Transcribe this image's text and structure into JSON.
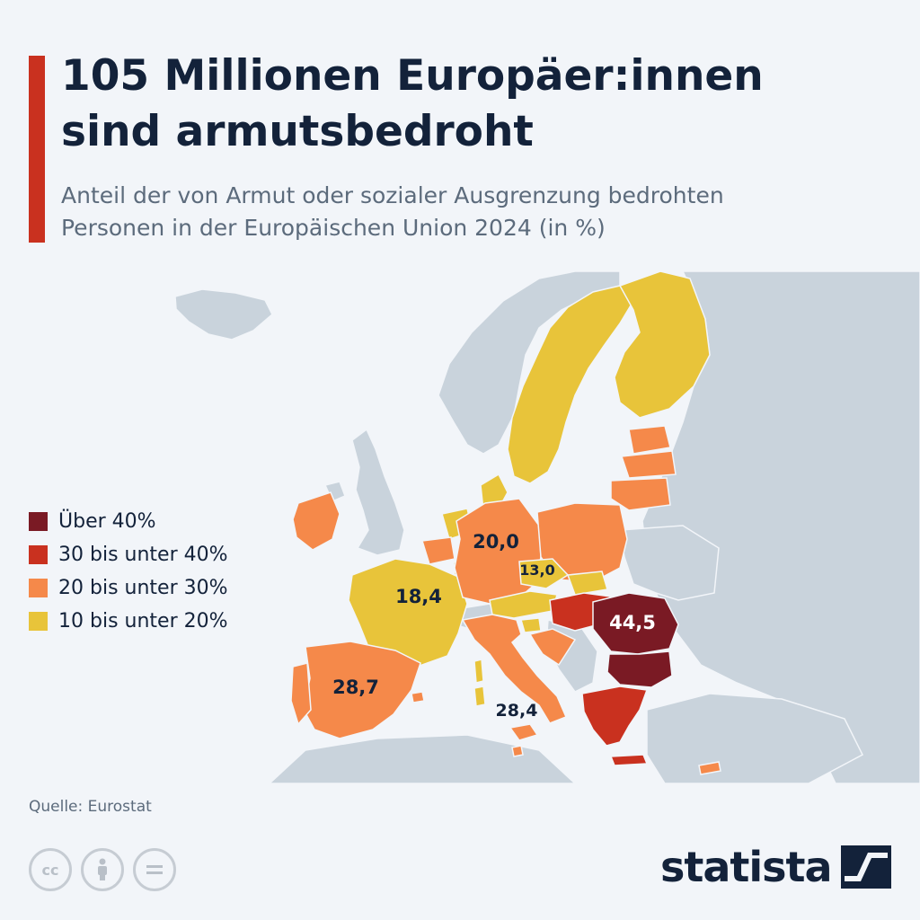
{
  "header": {
    "title_line1": "105 Millionen Europäer:innen",
    "title_line2": "sind armutsbedroht",
    "subtitle_line1": "Anteil der von Armut oder sozialer Ausgrenzung bedrohten",
    "subtitle_line2": "Personen in der Europäischen Union 2024 (in %)"
  },
  "legend": {
    "items": [
      {
        "label": "Über 40%",
        "color": "#7a1a24"
      },
      {
        "label": "30 bis unter 40%",
        "color": "#c9311f"
      },
      {
        "label": "20 bis unter 30%",
        "color": "#f5894a"
      },
      {
        "label": "10 bis unter 20%",
        "color": "#e8c43a"
      }
    ]
  },
  "map_labels": {
    "germany": "20,0",
    "czechia": "13,0",
    "france": "18,4",
    "romania_bulgaria": "44,5",
    "spain": "28,7",
    "italy": "28,4"
  },
  "colors": {
    "background": "#f2f5f9",
    "sea": "#f2f5f9",
    "non_eu_land": "#c9d3dc",
    "accent": "#c9311f",
    "over_40": "#7a1a24",
    "30_to_40": "#c9311f",
    "20_to_30": "#f5894a",
    "10_to_20": "#e8c43a",
    "text_dark": "#13223a"
  },
  "footer": {
    "source": "Quelle: Eurostat",
    "license_icons": [
      "cc-icon",
      "attribution-icon",
      "no-derivatives-icon"
    ],
    "brand": "statista"
  }
}
